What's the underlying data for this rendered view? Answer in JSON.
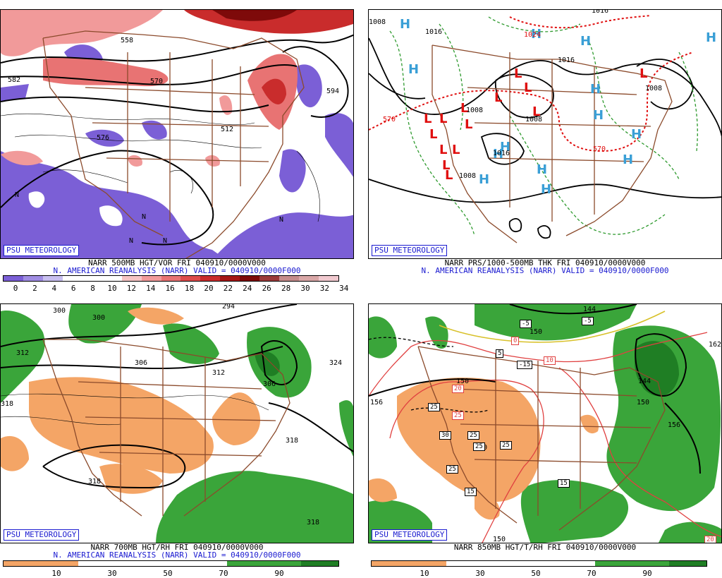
{
  "panels": [
    {
      "id": "tl",
      "badge": "PSU METEOROLOGY",
      "title_line1": "NARR 500MB HGT/VOR FRI 040910/0000V000",
      "title_line2": "N. AMERICAN REANALYSIS (NARR) VALID = 040910/0000F000",
      "colorbar_labels": [
        "0",
        "2",
        "4",
        "6",
        "8",
        "10",
        "12",
        "14",
        "16",
        "18",
        "20",
        "22",
        "24",
        "26",
        "28",
        "30",
        "32",
        "34"
      ],
      "colorbar_colors": [
        "#7b5fd6",
        "#a08de3",
        "#c8bff0",
        "#ffffff",
        "#ffffff",
        "#ffffff",
        "#f6c4c4",
        "#f19a9a",
        "#e87373",
        "#dd4b4b",
        "#c92c2c",
        "#a51616",
        "#7e0a0a",
        "#9b3a3a",
        "#c58c8c",
        "#d9a7a7",
        "#f1c9cf"
      ],
      "contour_labels": [
        "558",
        "570",
        "582",
        "594",
        "576",
        "512",
        "N",
        "N",
        "N",
        "N",
        "N"
      ]
    },
    {
      "id": "tr",
      "badge": "PSU METEOROLOGY",
      "title_line1": "NARR PRS/1000-500MB THK FRI 040910/0000V000",
      "title_line2": "N. AMERICAN REANALYSIS (NARR) VALID = 040910/0000F000",
      "contour_labels": [
        "1016",
        "1016",
        "1008",
        "1008",
        "1016",
        "1008",
        "1024",
        "570",
        "570",
        "1008",
        "1016",
        "1008"
      ],
      "high_symbol": "H",
      "low_symbol": "L"
    },
    {
      "id": "bl",
      "badge": "PSU METEOROLOGY",
      "title_line1": "NARR 700MB HGT/RH FRI 040910/0000V000",
      "title_line2": "N. AMERICAN REANALYSIS (NARR) VALID = 040910/0000F000",
      "colorbar_labels": [
        "10",
        "30",
        "50",
        "70",
        "90"
      ],
      "contour_labels": [
        "300",
        "300",
        "294",
        "312",
        "306",
        "312",
        "306",
        "324",
        "318",
        "318",
        "318",
        "318"
      ]
    },
    {
      "id": "br",
      "badge": "PSU METEOROLOGY",
      "title_line1": "NARR 850MB HGT/T/RH FRI 040910/0000V000",
      "colorbar_labels": [
        "10",
        "30",
        "50",
        "70",
        "90"
      ],
      "contour_labels": [
        "144",
        "156",
        "150",
        "150",
        "162",
        "144",
        "150",
        "156",
        "150",
        "150"
      ],
      "temp_labels": [
        "-5",
        "-5",
        "5",
        "-15",
        "0",
        "10",
        "20",
        "25",
        "25",
        "30",
        "25",
        "25",
        "25",
        "25",
        "15",
        "15",
        "20"
      ]
    }
  ],
  "colors": {
    "vorticity_positive": "#e05555",
    "vorticity_negative": "#7b5fd6",
    "rh_dry": "#f4a566",
    "rh_moist": "#3aa53a",
    "map_outline": "#8b4a2b",
    "title_blue": "#1a1ad0",
    "high_color": "#3a9fd6",
    "low_color": "#e01010"
  }
}
